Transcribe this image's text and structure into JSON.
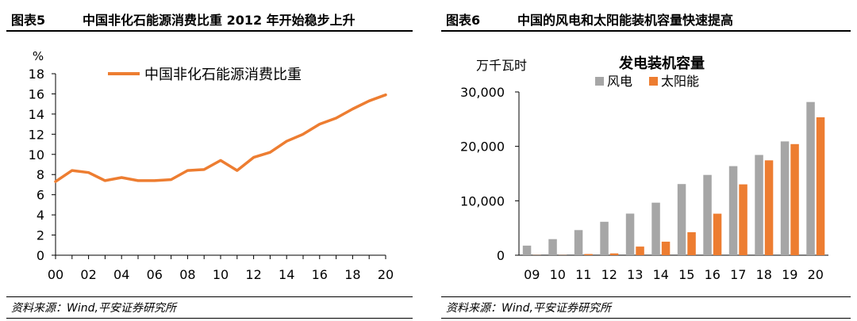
{
  "colors": {
    "line": "#ED7D31",
    "wind": "#A6A6A6",
    "solar": "#ED7D31",
    "axis": "#000000"
  },
  "left": {
    "fig_num": "图表5",
    "fig_title": "中国非化石能源消费比重 2012 年开始稳步上升",
    "source": "资料来源：Wind,平安证券研究所"
  },
  "right": {
    "fig_num": "图表6",
    "fig_title": "中国的风电和太阳能装机容量快速提高",
    "source": "资料来源：Wind,平安证券研究所"
  },
  "chart_data": [
    {
      "type": "line",
      "title": "",
      "unit": "%",
      "xlabel": "",
      "ylabel": "",
      "ylim": [
        0,
        18
      ],
      "y_ticks": [
        "0",
        "2",
        "4",
        "6",
        "8",
        "10",
        "12",
        "14",
        "16",
        "18"
      ],
      "x": [
        "00",
        "01",
        "02",
        "03",
        "04",
        "05",
        "06",
        "07",
        "08",
        "09",
        "10",
        "11",
        "12",
        "13",
        "14",
        "15",
        "16",
        "17",
        "18",
        "19",
        "20"
      ],
      "x_tick_labels": [
        "00",
        "02",
        "04",
        "06",
        "08",
        "10",
        "12",
        "14",
        "16",
        "18",
        "20"
      ],
      "grid": false,
      "legend_position": "top-center",
      "series": [
        {
          "name": "中国非化石能源消费比重",
          "values": [
            7.3,
            8.4,
            8.2,
            7.4,
            7.7,
            7.4,
            7.4,
            7.5,
            8.4,
            8.5,
            9.4,
            8.4,
            9.7,
            10.2,
            11.3,
            12.0,
            13.0,
            13.6,
            14.5,
            15.3,
            15.9
          ]
        }
      ]
    },
    {
      "type": "bar",
      "title": "发电装机容量",
      "unit": "万千瓦时",
      "xlabel": "",
      "ylabel": "",
      "ylim": [
        0,
        30000
      ],
      "y_ticks": [
        "0",
        "10,000",
        "20,000",
        "30,000"
      ],
      "categories": [
        "09",
        "10",
        "11",
        "12",
        "13",
        "14",
        "15",
        "16",
        "17",
        "18",
        "19",
        "20"
      ],
      "grid": false,
      "legend_position": "top-left",
      "series": [
        {
          "name": "风电",
          "values": [
            1760,
            2958,
            4623,
            6142,
            7652,
            9657,
            13075,
            14747,
            16367,
            18426,
            20915,
            28153
          ]
        },
        {
          "name": "太阳能",
          "values": [
            30,
            26,
            212,
            341,
            1589,
            2486,
            4218,
            7631,
            13025,
            17433,
            20418,
            25343
          ]
        }
      ]
    }
  ]
}
